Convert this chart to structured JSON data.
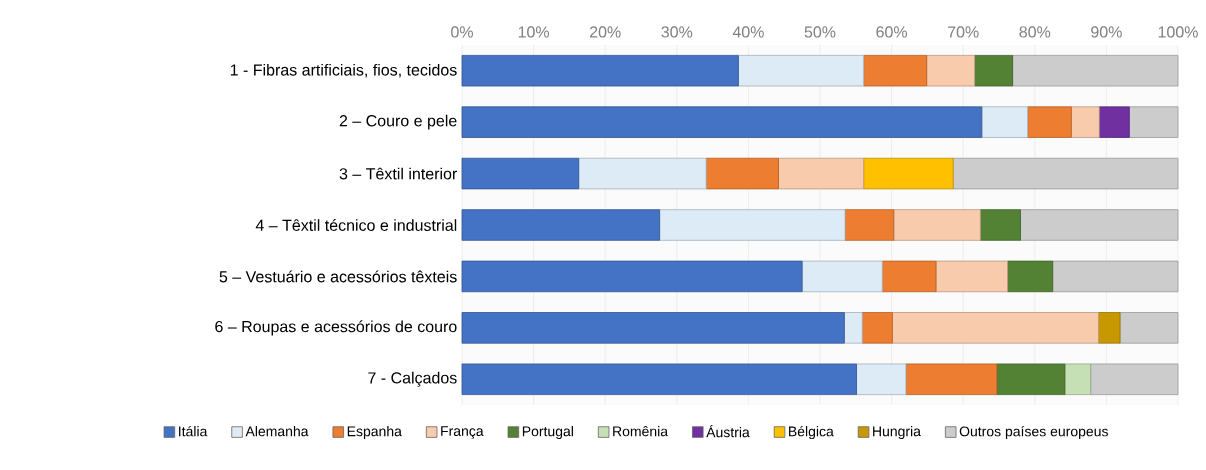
{
  "chart_data": {
    "type": "bar",
    "orientation": "horizontal",
    "stacked": true,
    "categories": [
      "1 - Fibras artificiais, fios, tecidos",
      "2 – Couro e pele",
      "3 – Têxtil interior",
      "4 – Têxtil técnico e industrial",
      "5 – Vestuário e acessórios têxteis",
      "6 – Roupas e acessórios de couro",
      "7 - Calçados"
    ],
    "series": [
      {
        "name": "Itália",
        "color": "#4472c4",
        "values": [
          38.6,
          72.6,
          16.3,
          27.6,
          47.5,
          53.4,
          55.1
        ]
      },
      {
        "name": "Alemanha",
        "color": "#ddebf7",
        "values": [
          17.5,
          6.4,
          17.8,
          25.9,
          11.2,
          2.5,
          6.9
        ]
      },
      {
        "name": "Espanha",
        "color": "#ed7d31",
        "values": [
          8.8,
          6.1,
          10.1,
          6.8,
          7.5,
          4.2,
          12.7
        ]
      },
      {
        "name": "França",
        "color": "#f8cbad",
        "values": [
          6.7,
          3.9,
          11.9,
          12.1,
          10.0,
          28.8,
          null
        ]
      },
      {
        "name": "Portugal",
        "color": "#548235",
        "values": [
          5.3,
          null,
          null,
          5.6,
          6.3,
          null,
          9.5
        ]
      },
      {
        "name": "Romênia",
        "color": "#c5e0b4",
        "values": [
          null,
          null,
          null,
          null,
          null,
          null,
          3.6
        ]
      },
      {
        "name": "Áustria",
        "color": "#7030a0",
        "values": [
          null,
          4.2,
          null,
          null,
          null,
          null,
          null
        ]
      },
      {
        "name": "Bélgica",
        "color": "#ffc000",
        "values": [
          null,
          null,
          12.5,
          null,
          null,
          null,
          null
        ]
      },
      {
        "name": "Hungria",
        "color": "#c89800",
        "values": [
          null,
          null,
          null,
          null,
          null,
          3.0,
          null
        ]
      },
      {
        "name": "Outros países europeus",
        "color": "#cccccc",
        "values": [
          23.1,
          6.8,
          31.4,
          22.0,
          17.5,
          8.1,
          12.2
        ]
      }
    ],
    "xlim": [
      0,
      100
    ],
    "xticks": [
      {
        "value": 0,
        "label": "0%"
      },
      {
        "value": 10,
        "label": "10%"
      },
      {
        "value": 20,
        "label": "20%"
      },
      {
        "value": 30,
        "label": "30%"
      },
      {
        "value": 40,
        "label": "40%"
      },
      {
        "value": 50,
        "label": "50%"
      },
      {
        "value": 60,
        "label": "60%"
      },
      {
        "value": 70,
        "label": "70%"
      },
      {
        "value": 80,
        "label": "80%"
      },
      {
        "value": 90,
        "label": "90%"
      },
      {
        "value": 100,
        "label": "100%"
      }
    ],
    "grid": "x",
    "legend": "bottom"
  }
}
